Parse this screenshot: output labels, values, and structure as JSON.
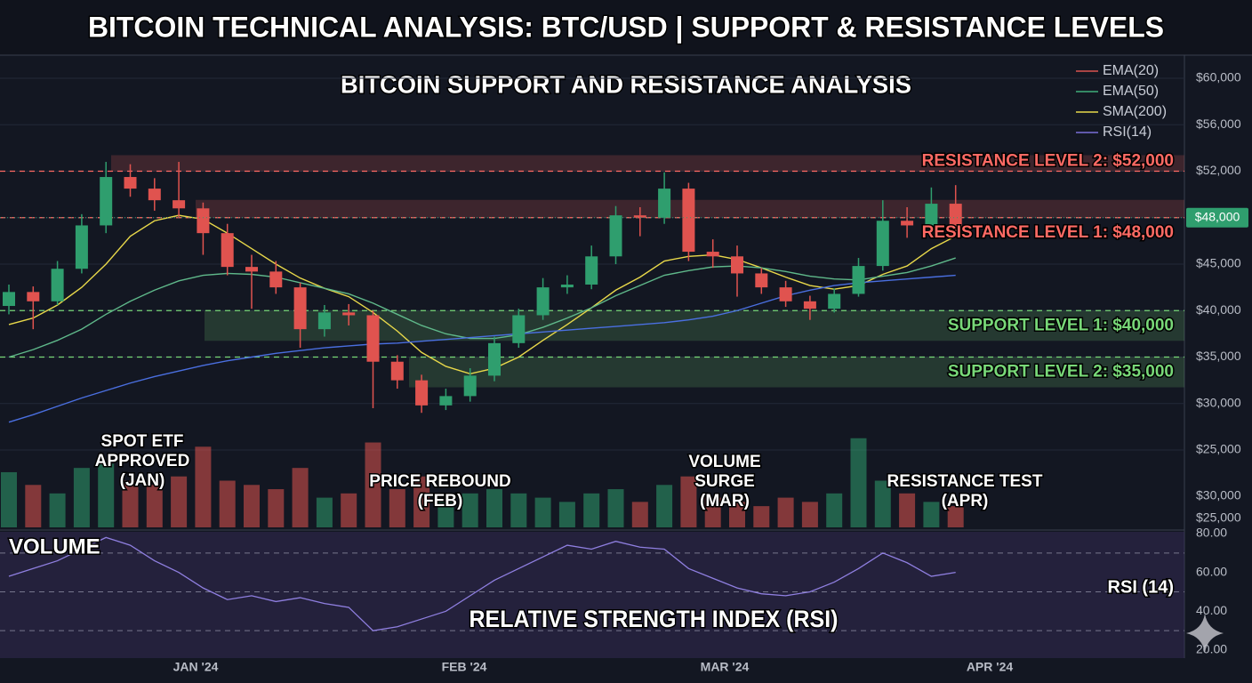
{
  "title": "BITCOIN TECHNICAL ANALYSIS: BTC/USD | SUPPORT & RESISTANCE LEVELS",
  "subtitle": "BITCOIN SUPPORT AND RESISTANCE ANALYSIS",
  "chart_data": {
    "type": "candlestick",
    "candles": [
      [
        40500,
        42800,
        39600,
        42000
      ],
      [
        42000,
        42600,
        38000,
        41000
      ],
      [
        41000,
        45200,
        40600,
        44500
      ],
      [
        44500,
        48300,
        44000,
        47500
      ],
      [
        47500,
        52800,
        47000,
        51500
      ],
      [
        51500,
        52600,
        49800,
        50500
      ],
      [
        50500,
        51400,
        48600,
        49500
      ],
      [
        49500,
        52800,
        48000,
        48800
      ],
      [
        48800,
        49300,
        45600,
        47000
      ],
      [
        47000,
        47600,
        43800,
        44700
      ],
      [
        44700,
        45600,
        40200,
        44200
      ],
      [
        44200,
        45200,
        41800,
        42500
      ],
      [
        42500,
        43000,
        36000,
        38000
      ],
      [
        38000,
        40600,
        37200,
        39800
      ],
      [
        39800,
        40700,
        38400,
        39500
      ],
      [
        39500,
        40000,
        29500,
        34500
      ],
      [
        34500,
        35200,
        31600,
        32500
      ],
      [
        32500,
        33100,
        29000,
        29800
      ],
      [
        29800,
        31600,
        29300,
        30800
      ],
      [
        30800,
        33800,
        30200,
        33000
      ],
      [
        33000,
        37200,
        32400,
        36500
      ],
      [
        36500,
        40200,
        36000,
        39500
      ],
      [
        39500,
        43500,
        39000,
        42500
      ],
      [
        42500,
        43800,
        41800,
        42800
      ],
      [
        42800,
        46200,
        42300,
        45500
      ],
      [
        45500,
        49000,
        45000,
        48200
      ],
      [
        48200,
        48900,
        46800,
        48000
      ],
      [
        48000,
        51900,
        47600,
        50500
      ],
      [
        50500,
        51000,
        45200,
        45800
      ],
      [
        45800,
        46600,
        44600,
        45500
      ],
      [
        45500,
        46200,
        41500,
        44000
      ],
      [
        44000,
        44600,
        41800,
        42500
      ],
      [
        42500,
        43200,
        40400,
        41000
      ],
      [
        41000,
        41600,
        39000,
        40200
      ],
      [
        40200,
        42400,
        39800,
        41800
      ],
      [
        41800,
        45400,
        41500,
        44800
      ],
      [
        44800,
        49500,
        44300,
        47800
      ],
      [
        47800,
        48900,
        46700,
        47500
      ],
      [
        47500,
        50600,
        47100,
        49200
      ],
      [
        49200,
        50800,
        47000,
        47400
      ]
    ],
    "colors": {
      "up": "#2f9e6e",
      "down": "#e0534f"
    },
    "ylim": [
      25000,
      60000
    ],
    "yticks": [
      {
        "value": 60000,
        "label": "$60,000"
      },
      {
        "value": 56000,
        "label": "$56,000"
      },
      {
        "value": 52000,
        "label": "$52,000"
      },
      {
        "value": 48000,
        "label": "$48,000"
      },
      {
        "value": 45000,
        "label": "$45,000"
      },
      {
        "value": 40000,
        "label": "$40,000"
      },
      {
        "value": 35000,
        "label": "$35,000"
      },
      {
        "value": 30000,
        "label": "$30,000"
      },
      {
        "value": 25000,
        "label": "$25,000"
      }
    ],
    "grid": true,
    "indicators": [
      {
        "color": "#e8d84a",
        "values": [
          38500,
          39200,
          40600,
          42500,
          45000,
          46800,
          47800,
          48200,
          47900,
          47000,
          46000,
          45000,
          43500,
          42400,
          41500,
          39800,
          37800,
          35500,
          34000,
          33200,
          33800,
          35000,
          36800,
          38500,
          40300,
          42200,
          43600,
          45200,
          45500,
          45600,
          45300,
          44600,
          43600,
          42700,
          42300,
          42700,
          43900,
          44800,
          46000,
          46800
        ]
      },
      {
        "color": "#5fb88a",
        "values": [
          35000,
          35800,
          36800,
          38000,
          39600,
          41000,
          42200,
          43200,
          43800,
          44000,
          43900,
          43600,
          43000,
          42400,
          41800,
          40800,
          39600,
          38400,
          37500,
          37000,
          37000,
          37400,
          38200,
          39200,
          40300,
          41600,
          42700,
          43800,
          44300,
          44700,
          44800,
          44600,
          44200,
          43700,
          43400,
          43300,
          43700,
          44100,
          44800,
          45400
        ]
      },
      {
        "color": "#4a6fe0",
        "values": [
          28000,
          28800,
          29700,
          30600,
          31400,
          32200,
          32900,
          33500,
          34100,
          34600,
          35000,
          35400,
          35700,
          36000,
          36200,
          36400,
          36500,
          36700,
          36900,
          37100,
          37300,
          37500,
          37700,
          37900,
          38100,
          38300,
          38500,
          38700,
          39000,
          39400,
          40000,
          40800,
          41600,
          42200,
          42700,
          43000,
          43200,
          43400,
          43600,
          43800
        ]
      }
    ],
    "legend": [
      {
        "name": "EMA(20)",
        "color": "#d9534f"
      },
      {
        "name": "EMA(50)",
        "color": "#3fae7a"
      },
      {
        "name": "SMA(200)",
        "color": "#e8d84a"
      },
      {
        "name": "RSI(14)",
        "color": "#7b6fd8"
      }
    ],
    "levels": [
      {
        "label": "RESISTANCE LEVEL 2: $52,000",
        "value": 52000,
        "color": "#ff6a64"
      },
      {
        "label": "RESISTANCE LEVEL 1: $48,000",
        "value": 48000,
        "color": "#ff6a64"
      },
      {
        "label": "SUPPORT LEVEL 1: $40,000",
        "value": 40000,
        "color": "#78d878"
      },
      {
        "label": "SUPPORT LEVEL 2: $35,000",
        "value": 35000,
        "color": "#78d878"
      }
    ],
    "price_tag": {
      "value": 48000,
      "label": "$48,000"
    },
    "annotations": [
      {
        "lines": [
          "SPOT ETF",
          "APPROVED",
          "(JAN)"
        ]
      },
      {
        "lines": [
          "PRICE REBOUND",
          "(FEB)"
        ]
      },
      {
        "lines": [
          "VOLUME",
          "SURGE",
          "(MAR)"
        ]
      },
      {
        "lines": [
          "RESISTANCE TEST",
          "(APR)"
        ]
      }
    ],
    "xlabels": [
      "JAN '24",
      "FEB '24",
      "MAR '24",
      "APR '24"
    ],
    "volume": {
      "label": "VOLUME",
      "values": [
        65,
        50,
        40,
        70,
        75,
        55,
        50,
        60,
        95,
        55,
        50,
        45,
        70,
        35,
        40,
        100,
        45,
        60,
        30,
        40,
        45,
        40,
        35,
        30,
        40,
        45,
        30,
        50,
        60,
        35,
        30,
        25,
        35,
        30,
        40,
        105,
        55,
        40,
        30,
        25
      ],
      "ylim": [
        0,
        110
      ],
      "axis_labels": [
        "$30,000",
        "$25,000"
      ]
    },
    "rsi": {
      "label": "RSI (14)",
      "title": "RELATIVE STRENGTH INDEX (RSI)",
      "color": "#8f7fe0",
      "values": [
        58,
        62,
        66,
        72,
        78,
        74,
        66,
        60,
        52,
        46,
        48,
        45,
        47,
        44,
        42,
        30,
        32,
        36,
        40,
        48,
        56,
        62,
        68,
        74,
        72,
        76,
        73,
        72,
        62,
        57,
        52,
        49,
        48,
        50,
        55,
        62,
        70,
        65,
        58,
        60
      ],
      "ylim": [
        20,
        80
      ],
      "yticks": [
        {
          "value": 80,
          "label": "80.00"
        },
        {
          "value": 60,
          "label": "60.00"
        },
        {
          "value": 40,
          "label": "40.00"
        },
        {
          "value": 20,
          "label": "20.00"
        }
      ],
      "levels": [
        70,
        50,
        30
      ]
    }
  }
}
